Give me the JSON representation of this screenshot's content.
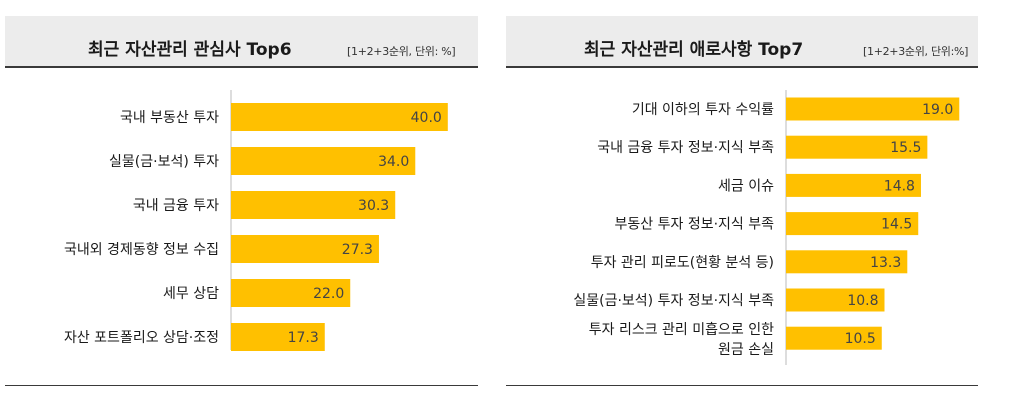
{
  "colors": {
    "bar": "#ffc000",
    "header_bg": "#ececec",
    "axis": "#bbbbbb"
  },
  "chart_data": [
    {
      "type": "bar",
      "orientation": "horizontal",
      "title": "최근 자산관리 관심사 Top6",
      "unit_label": "[1+2+3순위, 단위: %]",
      "categories": [
        "국내 부동산 투자",
        "실물(금·보석) 투자",
        "국내 금융 투자",
        "국내외 경제동향 정보 수집",
        "세무 상담",
        "자산 포트폴리오 상담·조정"
      ],
      "values": [
        40.0,
        34.0,
        30.3,
        27.3,
        22.0,
        17.3
      ],
      "value_labels": [
        "40.0",
        "34.0",
        "30.3",
        "27.3",
        "22.0",
        "17.3"
      ]
    },
    {
      "type": "bar",
      "orientation": "horizontal",
      "title": "최근 자산관리 애로사항 Top7",
      "unit_label": "[1+2+3순위, 단위:%]",
      "categories": [
        "기대 이하의 투자 수익률",
        "국내 금융 투자 정보·지식 부족",
        "세금 이슈",
        "부동산 투자 정보·지식 부족",
        "투자 관리 피로도(현황 분석 등)",
        "실물(금·보석) 투자 정보·지식 부족",
        "투자 리스크 관리 미흡으로 인한 원금 손실"
      ],
      "values": [
        19.0,
        15.5,
        14.8,
        14.5,
        13.3,
        10.8,
        10.5
      ],
      "value_labels": [
        "19.0",
        "15.5",
        "14.8",
        "14.5",
        "13.3",
        "10.8",
        "10.5"
      ]
    }
  ]
}
